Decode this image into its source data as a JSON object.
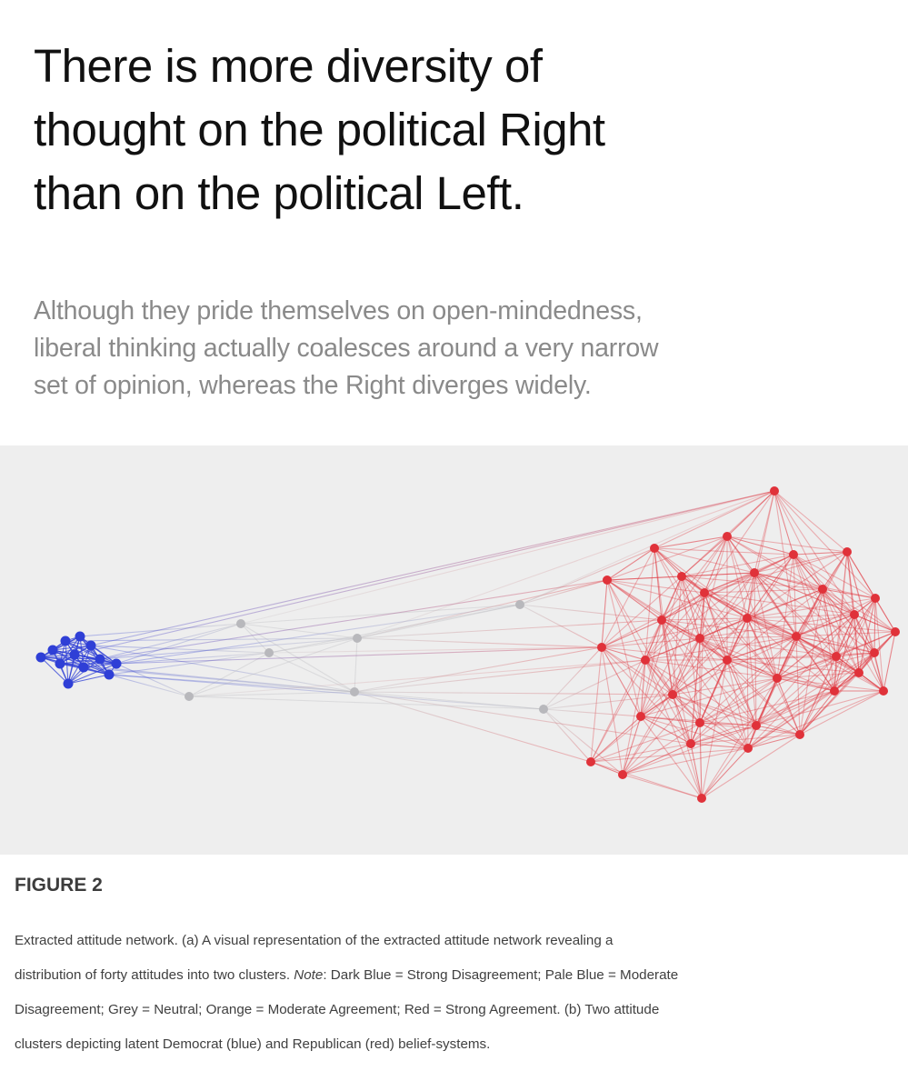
{
  "headline": {
    "lines": [
      "There is more diversity of",
      "thought on the political Right",
      "than on the political Left."
    ]
  },
  "subhead": {
    "lines": [
      "Although they pride themselves on open-mindedness,",
      "liberal thinking actually coalesces around a very narrow",
      "set of opinion, whereas the Right diverges widely."
    ]
  },
  "figure": {
    "label": "FIGURE 2",
    "caption": {
      "line1": "Extracted attitude network. (a) A visual representation of the extracted attitude network revealing a",
      "line2_start": "distribution of forty attitudes into two clusters. ",
      "line2_note": "Note",
      "line2_end": ": Dark Blue = Strong Disagreement; Pale Blue = Moderate",
      "line3": "Disagreement; Grey = Neutral; Orange = Moderate Agreement; Red = Strong Agreement. (b) Two attitude",
      "line4": "clusters depicting latent Democrat (blue) and Republican (red) belief-systems."
    },
    "colors": {
      "blue": "#2f3fd6",
      "grey": "#b8b8bc",
      "red": "#e0323a",
      "panel": "#eeeeee"
    }
  }
}
